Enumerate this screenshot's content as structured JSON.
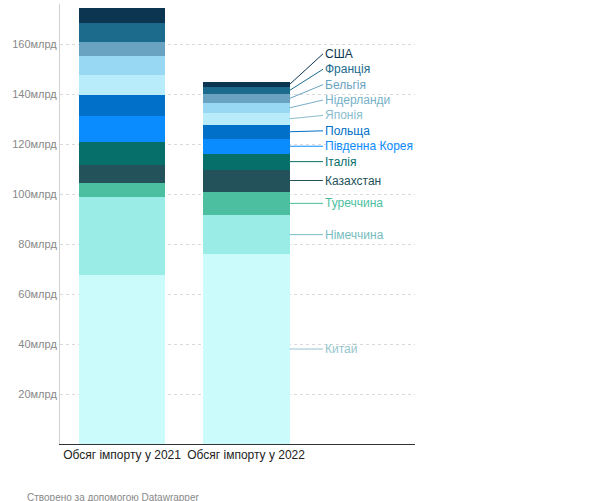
{
  "chart_data": {
    "type": "bar",
    "stacked": true,
    "categories": [
      "Обсяг імпорту у 2021",
      "Обсяг імпорту у 2022"
    ],
    "series": [
      {
        "name": "Китай",
        "color": "#ccfbfc",
        "values": [
          67.6,
          76.0
        ]
      },
      {
        "name": "Німеччина",
        "color": "#99ede6",
        "values": [
          31.4,
          15.5
        ]
      },
      {
        "name": "Туреччина",
        "color": "#4bbf9f",
        "values": [
          5.6,
          9.5
        ]
      },
      {
        "name": "Казахстан",
        "color": "#24525a",
        "values": [
          7.2,
          8.8
        ]
      },
      {
        "name": "Італія",
        "color": "#066f6a",
        "values": [
          9.1,
          6.3
        ]
      },
      {
        "name": "Південна Корея",
        "color": "#0a8cff",
        "values": [
          10.4,
          6.0
        ]
      },
      {
        "name": "Польща",
        "color": "#0070c8",
        "values": [
          8.3,
          5.6
        ]
      },
      {
        "name": "Японія",
        "color": "#b8ecfb",
        "values": [
          8.0,
          4.8
        ]
      },
      {
        "name": "Нідерланди",
        "color": "#99d8f2",
        "values": [
          7.5,
          3.9
        ]
      },
      {
        "name": "Бельгія",
        "color": "#69a3c1",
        "values": [
          5.6,
          3.6
        ]
      },
      {
        "name": "Франція",
        "color": "#1c6a8c",
        "values": [
          7.6,
          2.8
        ]
      },
      {
        "name": "США",
        "color": "#0b3550",
        "values": [
          6.3,
          2.0
        ]
      }
    ],
    "ylim": [
      0,
      176
    ],
    "yticks": [
      {
        "value": 20,
        "label": "20млрд"
      },
      {
        "value": 40,
        "label": "40млрд"
      },
      {
        "value": 60,
        "label": "60млрд"
      },
      {
        "value": 80,
        "label": "80млрд"
      },
      {
        "value": 100,
        "label": "100млрд"
      },
      {
        "value": 120,
        "label": "120млрд"
      },
      {
        "value": 140,
        "label": "140млрд"
      },
      {
        "value": 160,
        "label": "160млрд"
      }
    ],
    "grid": true,
    "footer": "Створено за допомогою Datawrapper"
  }
}
